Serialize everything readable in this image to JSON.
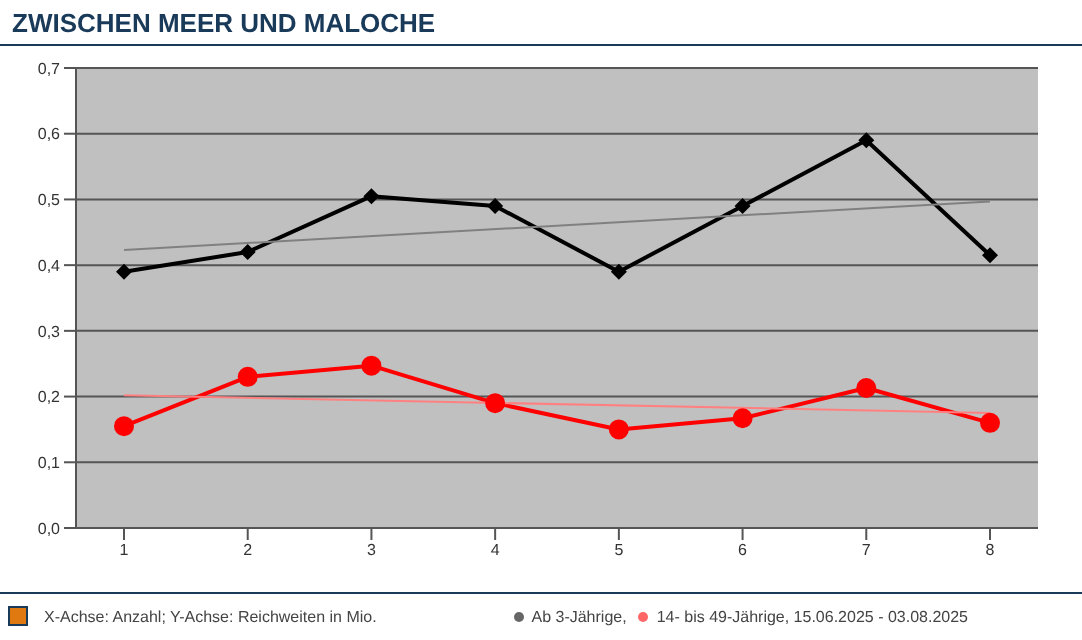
{
  "chart_data": {
    "type": "line",
    "title": "ZWISCHEN MEER UND MALOCHE",
    "categories": [
      "1",
      "2",
      "3",
      "4",
      "5",
      "6",
      "7",
      "8"
    ],
    "series": [
      {
        "name": "Ab 3-Jährige,",
        "color": "#000000",
        "marker": "diamond",
        "values": [
          0.39,
          0.42,
          0.505,
          0.49,
          0.39,
          0.49,
          0.59,
          0.415
        ]
      },
      {
        "name": "14- bis 49-Jährige, 15.06.2025 - 03.08.2025",
        "color": "#ff0000",
        "marker": "circle",
        "values": [
          0.155,
          0.23,
          0.247,
          0.19,
          0.15,
          0.167,
          0.213,
          0.16
        ]
      },
      {
        "type": "line",
        "color": "#808080",
        "marker": "none",
        "x": [
          "1",
          "8"
        ],
        "values": [
          0.423,
          0.497
        ]
      },
      {
        "type": "line",
        "color": "#ff8080",
        "marker": "none",
        "x": [
          "1",
          "8"
        ],
        "values": [
          0.202,
          0.175
        ]
      }
    ],
    "ylim": [
      0,
      0.7
    ],
    "yticks": [
      {
        "value": 0,
        "label": "0,0"
      },
      {
        "value": 0.1,
        "label": "0,1"
      },
      {
        "value": 0.2,
        "label": "0,2"
      },
      {
        "value": 0.3,
        "label": "0,3"
      },
      {
        "value": 0.4,
        "label": "0,4"
      },
      {
        "value": 0.5,
        "label": "0,5"
      },
      {
        "value": 0.6,
        "label": "0,6"
      },
      {
        "value": 0.7,
        "label": "0,7"
      }
    ],
    "grid": "y",
    "legend": "bottom",
    "annotations": [
      "X-Achse: Anzahl; Y-Achse: Reichweiten in Mio."
    ]
  }
}
